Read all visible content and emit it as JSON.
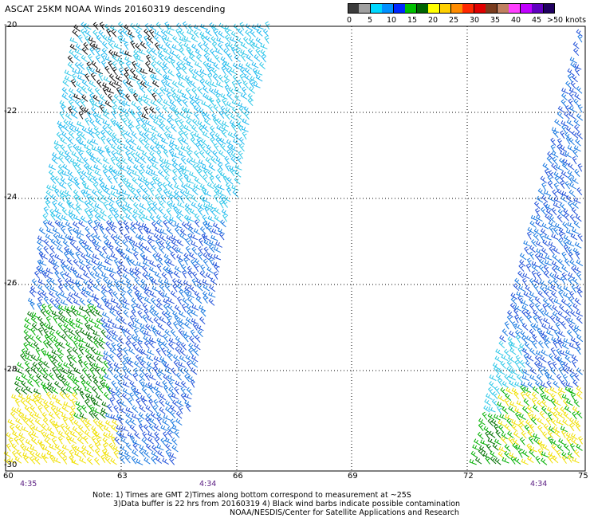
{
  "title": "ASCAT 25KM NOAA Winds 20160319 descending",
  "colorbar": {
    "unit_label": ">50 knots",
    "labels": [
      "0",
      "5",
      "10",
      "15",
      "20",
      "25",
      "30",
      "35",
      "40",
      "45"
    ],
    "colors": [
      "#3c3c3c",
      "#a0a0a0",
      "#00d8ff",
      "#0090ff",
      "#0028ff",
      "#00c000",
      "#006400",
      "#ffff00",
      "#ffd000",
      "#ff8c00",
      "#ff2800",
      "#e00000",
      "#7a3c1e",
      "#c08060",
      "#ff40ff",
      "#c000ff",
      "#6000c0",
      "#200060"
    ]
  },
  "lat_labels": [
    "-20",
    "-22",
    "-24",
    "-26",
    "-28",
    "-30"
  ],
  "lon_labels": [
    "60",
    "63",
    "66",
    "69",
    "72",
    "75"
  ],
  "time_labels": [
    "4:35",
    "4:34",
    "4:34"
  ],
  "notes": {
    "line1": "Note: 1) Times are GMT 2)Times along bottom correspond to measurement at ~25S",
    "line2": "3)Data buffer is 22 hrs from 20160319 4) Black wind barbs indicate possible contamination",
    "line3": "NOAA/NESDIS/Center for Satellite Applications and Research"
  }
}
